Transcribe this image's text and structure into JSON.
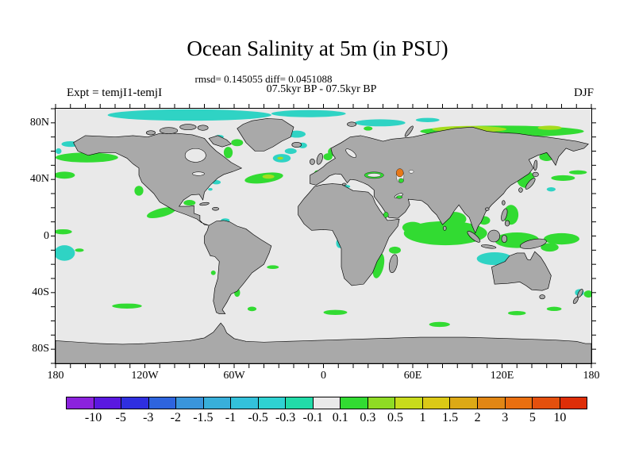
{
  "figure": {
    "title": "Ocean Salinity at 5m (in PSU)",
    "stats_line": "rmsd= 0.145055 diff= 0.0451088",
    "comparison_line": "07.5kyr BP - 07.5kyr BP",
    "experiment_label": "Expt = temjI1-temjI",
    "season_label": "DJF"
  },
  "map_axes": {
    "x_ticks": [
      {
        "label": "180",
        "lon": -180
      },
      {
        "label": "120W",
        "lon": -120
      },
      {
        "label": "60W",
        "lon": -60
      },
      {
        "label": "0",
        "lon": 0
      },
      {
        "label": "60E",
        "lon": 60
      },
      {
        "label": "120E",
        "lon": 120
      },
      {
        "label": "180",
        "lon": 180
      }
    ],
    "y_ticks": [
      {
        "label": "80N",
        "lat": 80
      },
      {
        "label": "40N",
        "lat": 40
      },
      {
        "label": "0",
        "lat": 0
      },
      {
        "label": "40S",
        "lat": -40
      },
      {
        "label": "80S",
        "lat": -80
      }
    ],
    "minor_tick_step_deg": 10
  },
  "colorbar": {
    "tick_labels": [
      "-10",
      "-5",
      "-3",
      "-2",
      "-1.5",
      "-1",
      "-0.5",
      "-0.3",
      "-0.1",
      "0.1",
      "0.3",
      "0.5",
      "1",
      "1.5",
      "2",
      "3",
      "5",
      "10"
    ]
  },
  "chart_data": {
    "type": "heatmap",
    "title": "Ocean Salinity at 5m (in PSU)",
    "units": "PSU",
    "season": "DJF",
    "experiment": "temjI1-temjI",
    "comparison": "07.5kyr BP - 07.5kyr BP",
    "rmsd": 0.145055,
    "diff": 0.0451088,
    "projection": "equirectangular",
    "lon_range": [
      -180,
      180
    ],
    "lat_range": [
      -90,
      90
    ],
    "levels": [
      -10,
      -5,
      -3,
      -2,
      -1.5,
      -1,
      -0.5,
      -0.3,
      -0.1,
      0.1,
      0.3,
      0.5,
      1,
      1.5,
      2,
      3,
      5,
      10
    ],
    "colors": [
      "#8B22DD",
      "#5A18E0",
      "#2F2FE0",
      "#2E64DE",
      "#3A95DB",
      "#38AFDA",
      "#33C1DB",
      "#2FD2D2",
      "#21DBA8",
      "#E9E9E9",
      "#32DB32",
      "#8FDB24",
      "#C8DB1C",
      "#DBC916",
      "#DCA915",
      "#E18614",
      "#E96F10",
      "#E4500D",
      "#DE2E08"
    ],
    "map_colors": {
      "ocean": "#E9E9E9",
      "land": "#A9A9A9",
      "coastline": "#000000"
    },
    "patch_classes": {
      "g": {
        "range": "0.1 to 0.3",
        "color": "#32DB32"
      },
      "y": {
        "range": "0.3 to 0.5",
        "color": "#A5DC1E"
      },
      "c": {
        "range": "-0.3 to -0.1",
        "color": "#2FD3C4"
      },
      "o": {
        "range": "3 to 5",
        "color": "#E87818"
      },
      "w": {
        "range": "-0.1 to 0.1",
        "color": "#E9E9E9"
      }
    },
    "anomaly_patches": [
      [
        10,
        25,
        6,
        2,
        0,
        "c"
      ],
      [
        2,
        30,
        2,
        2,
        0,
        "c"
      ],
      [
        90,
        4.5,
        55,
        4,
        0,
        "c"
      ],
      [
        170,
        3.5,
        25,
        2.5,
        0,
        "c"
      ],
      [
        218,
        10,
        17,
        2.5,
        0,
        "c"
      ],
      [
        250,
        8,
        8,
        1.5,
        0,
        "c"
      ],
      [
        110,
        20,
        3,
        1.5,
        0,
        "c"
      ],
      [
        162,
        18,
        6,
        2.5,
        0,
        "c"
      ],
      [
        166,
        26,
        3,
        2,
        0,
        "c"
      ],
      [
        152,
        35,
        6,
        3,
        0,
        "c"
      ],
      [
        158,
        30,
        4,
        2,
        0,
        "c"
      ],
      [
        108,
        52,
        3,
        1.5,
        0,
        "c"
      ],
      [
        104,
        57,
        1.5,
        1,
        0,
        "c"
      ],
      [
        114,
        79,
        3,
        1.5,
        0,
        "c"
      ],
      [
        6,
        102,
        7,
        5.5,
        0,
        "c"
      ],
      [
        295,
        106,
        12,
        4.5,
        0,
        "c"
      ],
      [
        302,
        53,
        3,
        2.5,
        0,
        "c"
      ],
      [
        333,
        57,
        3,
        1.5,
        0,
        "c"
      ],
      [
        352,
        130,
        3,
        2.5,
        0,
        "c"
      ],
      [
        191,
        95,
        2.5,
        3.5,
        0,
        "c"
      ],
      [
        196,
        55,
        2,
        1,
        0,
        "c"
      ],
      [
        21,
        34.5,
        21,
        3.5,
        0,
        "g"
      ],
      [
        6,
        47,
        7,
        2.5,
        0,
        "g"
      ],
      [
        56,
        58,
        3,
        3.5,
        0,
        "g"
      ],
      [
        71,
        73.5,
        10,
        3,
        -15,
        "g"
      ],
      [
        5,
        87,
        6,
        1.8,
        0,
        "g"
      ],
      [
        16,
        100,
        3,
        1.2,
        0,
        "g"
      ],
      [
        90,
        66.5,
        4,
        2,
        0,
        "g"
      ],
      [
        116,
        31,
        3,
        4,
        0,
        "g"
      ],
      [
        122,
        24,
        4,
        2.5,
        0,
        "g"
      ],
      [
        140,
        49,
        13,
        3.5,
        -8,
        "g"
      ],
      [
        186,
        30.5,
        3,
        3,
        0,
        "g"
      ],
      [
        183,
        34,
        3,
        2.5,
        0,
        "g"
      ],
      [
        176,
        45,
        2,
        1.5,
        0,
        "g"
      ],
      [
        210,
        14,
        3,
        1.5,
        0,
        "g"
      ],
      [
        217,
        111,
        3.5,
        9,
        12,
        "g"
      ],
      [
        228,
        100,
        4,
        2.5,
        0,
        "g"
      ],
      [
        262,
        88,
        28,
        8.5,
        0,
        "g"
      ],
      [
        268,
        78,
        8,
        5,
        0,
        "g"
      ],
      [
        240,
        84,
        7,
        4,
        0,
        "g"
      ],
      [
        288,
        79,
        4,
        3,
        0,
        "g"
      ],
      [
        310,
        93,
        15,
        5.5,
        0,
        "g"
      ],
      [
        306,
        75,
        5,
        7,
        0,
        "g"
      ],
      [
        316,
        50,
        6,
        6,
        0,
        "g"
      ],
      [
        330,
        34,
        5,
        3,
        0,
        "g"
      ],
      [
        341,
        49,
        8,
        2,
        0,
        "g"
      ],
      [
        351,
        45,
        6,
        1.5,
        0,
        "g"
      ],
      [
        340,
        92,
        12,
        4,
        0,
        "g"
      ],
      [
        332,
        98,
        6,
        3,
        0,
        "g"
      ],
      [
        300,
        16,
        55,
        4,
        0,
        "g"
      ],
      [
        48,
        139.5,
        10,
        1.8,
        0,
        "g"
      ],
      [
        106,
        116,
        1.6,
        1.6,
        0,
        "g"
      ],
      [
        122,
        130,
        2,
        3,
        0,
        "g"
      ],
      [
        132,
        141.5,
        3,
        1.6,
        0,
        "g"
      ],
      [
        146,
        112,
        4,
        1.3,
        0,
        "g"
      ],
      [
        188,
        144,
        8,
        1.8,
        0,
        "g"
      ],
      [
        258,
        152.5,
        7,
        1.8,
        0,
        "g"
      ],
      [
        310,
        144.5,
        6,
        1.5,
        0,
        "g"
      ],
      [
        335,
        141.5,
        5,
        1.5,
        0,
        "g"
      ],
      [
        358,
        131,
        3,
        2.5,
        0,
        "g"
      ],
      [
        143,
        48,
        4,
        1.5,
        0,
        "y"
      ],
      [
        151,
        35,
        2,
        1,
        0,
        "y"
      ],
      [
        278,
        14.5,
        25,
        2.3,
        0,
        "y"
      ],
      [
        332,
        13.5,
        8,
        1.5,
        0,
        "y"
      ]
    ],
    "overlay_patches": [
      [
        214,
        47,
        6.5,
        2.3,
        0,
        "g"
      ],
      [
        214,
        47,
        4.5,
        1.3,
        0,
        "w"
      ],
      [
        231.5,
        47.5,
        2.6,
        4.8,
        0,
        "w"
      ],
      [
        231.3,
        45.3,
        2.4,
        2.9,
        0,
        "o"
      ],
      [
        232.2,
        50.8,
        1.7,
        1.5,
        0,
        "g"
      ],
      [
        239,
        44.5,
        1.6,
        1.1,
        0,
        "w"
      ],
      [
        231,
        62.5,
        2,
        1,
        0,
        "g"
      ],
      [
        222,
        75,
        1.6,
        2,
        0,
        "g"
      ]
    ]
  }
}
